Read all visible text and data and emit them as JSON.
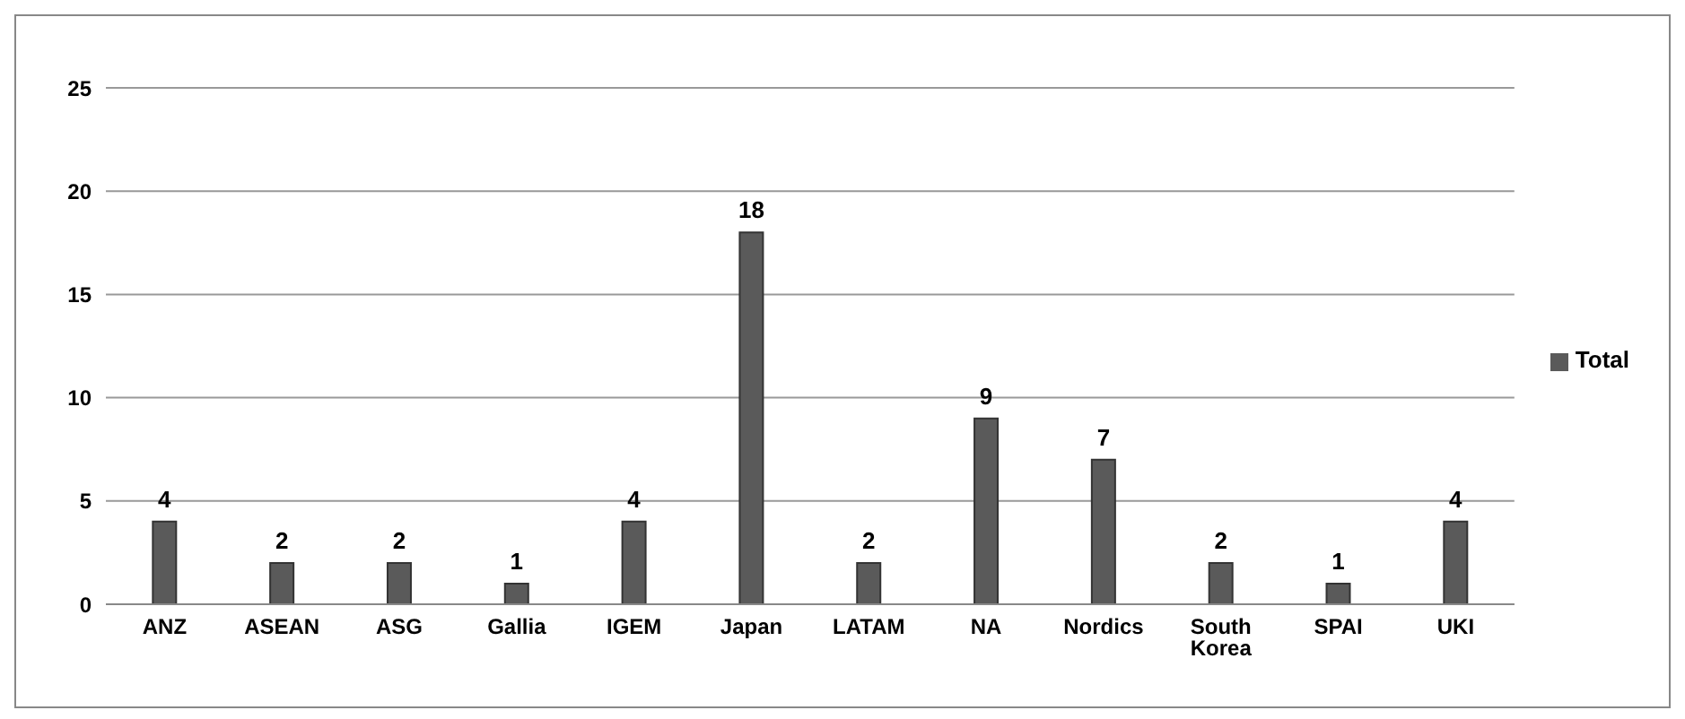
{
  "chart_data": {
    "type": "bar",
    "categories": [
      "ANZ",
      "ASEAN",
      "ASG",
      "Gallia",
      "IGEM",
      "Japan",
      "LATAM",
      "NA",
      "Nordics",
      "South Korea",
      "SPAI",
      "UKI"
    ],
    "series": [
      {
        "name": "Total",
        "color": "#5a5a5a",
        "values": [
          4,
          2,
          2,
          1,
          4,
          18,
          2,
          9,
          7,
          2,
          1,
          4
        ]
      }
    ],
    "ylim": [
      0,
      25
    ],
    "yticks": [
      0,
      5,
      10,
      15,
      20,
      25
    ],
    "grid": "y",
    "legend": "right",
    "data_labels": true
  }
}
